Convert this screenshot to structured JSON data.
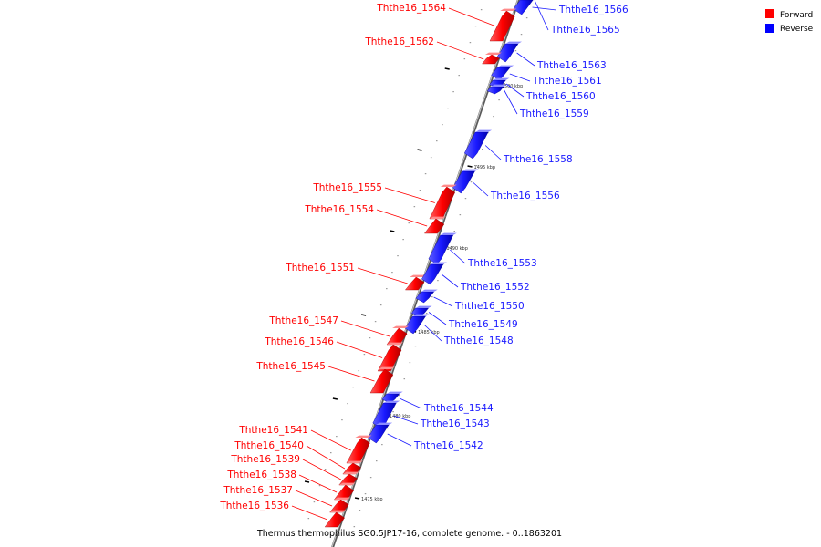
{
  "caption": "Thermus thermophilus SG0.5JP17-16, complete genome. - 0..1863201",
  "legend": [
    {
      "label": "Forward",
      "color": "#ff0000"
    },
    {
      "label": "Reverse",
      "color": "#0000ff"
    }
  ],
  "colors": {
    "forward": "#ff0000",
    "reverse": "#1a1aff",
    "axis": "#808080"
  },
  "ticks": [
    {
      "kbp": 1500,
      "label": "1500 kbp"
    },
    {
      "kbp": 1495,
      "label": "1495 kbp"
    },
    {
      "kbp": 1490,
      "label": "1490 kbp"
    },
    {
      "kbp": 1485,
      "label": "1485 kbp"
    },
    {
      "kbp": 1480,
      "label": "1480 kbp"
    },
    {
      "kbp": 1475,
      "label": "1475 kbp"
    }
  ],
  "genes": [
    {
      "name": "Ththe16_1566",
      "strand": "reverse"
    },
    {
      "name": "Ththe16_1565",
      "strand": "reverse"
    },
    {
      "name": "Ththe16_1564",
      "strand": "forward"
    },
    {
      "name": "Ththe16_1563",
      "strand": "reverse"
    },
    {
      "name": "Ththe16_1562",
      "strand": "forward"
    },
    {
      "name": "Ththe16_1561",
      "strand": "reverse"
    },
    {
      "name": "Ththe16_1560",
      "strand": "reverse"
    },
    {
      "name": "Ththe16_1559",
      "strand": "reverse"
    },
    {
      "name": "Ththe16_1558",
      "strand": "reverse"
    },
    {
      "name": "Ththe16_1556",
      "strand": "reverse"
    },
    {
      "name": "Ththe16_1555",
      "strand": "forward"
    },
    {
      "name": "Ththe16_1554",
      "strand": "forward"
    },
    {
      "name": "Ththe16_1553",
      "strand": "reverse"
    },
    {
      "name": "Ththe16_1551",
      "strand": "forward"
    },
    {
      "name": "Ththe16_1552",
      "strand": "reverse"
    },
    {
      "name": "Ththe16_1550",
      "strand": "reverse"
    },
    {
      "name": "Ththe16_1549",
      "strand": "reverse"
    },
    {
      "name": "Ththe16_1548",
      "strand": "reverse"
    },
    {
      "name": "Ththe16_1547",
      "strand": "forward"
    },
    {
      "name": "Ththe16_1546",
      "strand": "forward"
    },
    {
      "name": "Ththe16_1545",
      "strand": "forward"
    },
    {
      "name": "Ththe16_1544",
      "strand": "reverse"
    },
    {
      "name": "Ththe16_1543",
      "strand": "reverse"
    },
    {
      "name": "Ththe16_1542",
      "strand": "reverse"
    },
    {
      "name": "Ththe16_1541",
      "strand": "forward"
    },
    {
      "name": "Ththe16_1540",
      "strand": "forward"
    },
    {
      "name": "Ththe16_1539",
      "strand": "forward"
    },
    {
      "name": "Ththe16_1538",
      "strand": "forward"
    },
    {
      "name": "Ththe16_1537",
      "strand": "forward"
    },
    {
      "name": "Ththe16_1536",
      "strand": "forward"
    }
  ]
}
